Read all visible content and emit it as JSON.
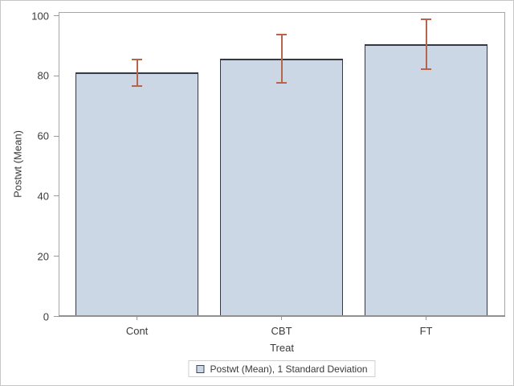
{
  "chart_data": {
    "type": "bar",
    "categories": [
      "Cont",
      "CBT",
      "FT"
    ],
    "series": [
      {
        "name": "Postwt (Mean)",
        "values": [
          81.1,
          85.7,
          90.5
        ],
        "error_low": [
          76.4,
          77.3,
          82.0
        ],
        "error_high": [
          85.8,
          94.0,
          99.0
        ],
        "error_label": "1 Standard Deviation"
      }
    ],
    "title": "",
    "xlabel": "Treat",
    "ylabel": "Postwt (Mean)",
    "ylim": [
      0,
      100
    ],
    "yticks": [
      0,
      20,
      40,
      60,
      80,
      100
    ],
    "grid": false,
    "legend": {
      "position": "bottom",
      "entries": [
        "Postwt (Mean), 1 Standard Deviation"
      ]
    },
    "colors": {
      "bar_fill": "#ccd7e6",
      "bar_border": "#333a45",
      "error_bar": "#b5654c",
      "frame_line": "#a6a6a6",
      "baseline": "#909090",
      "tick_mark": "#9a9a9a",
      "text": "#3a3a3a",
      "legend_border": "#cfcfcf",
      "figure_border": "#c6c6c6",
      "background": "#ffffff"
    }
  }
}
